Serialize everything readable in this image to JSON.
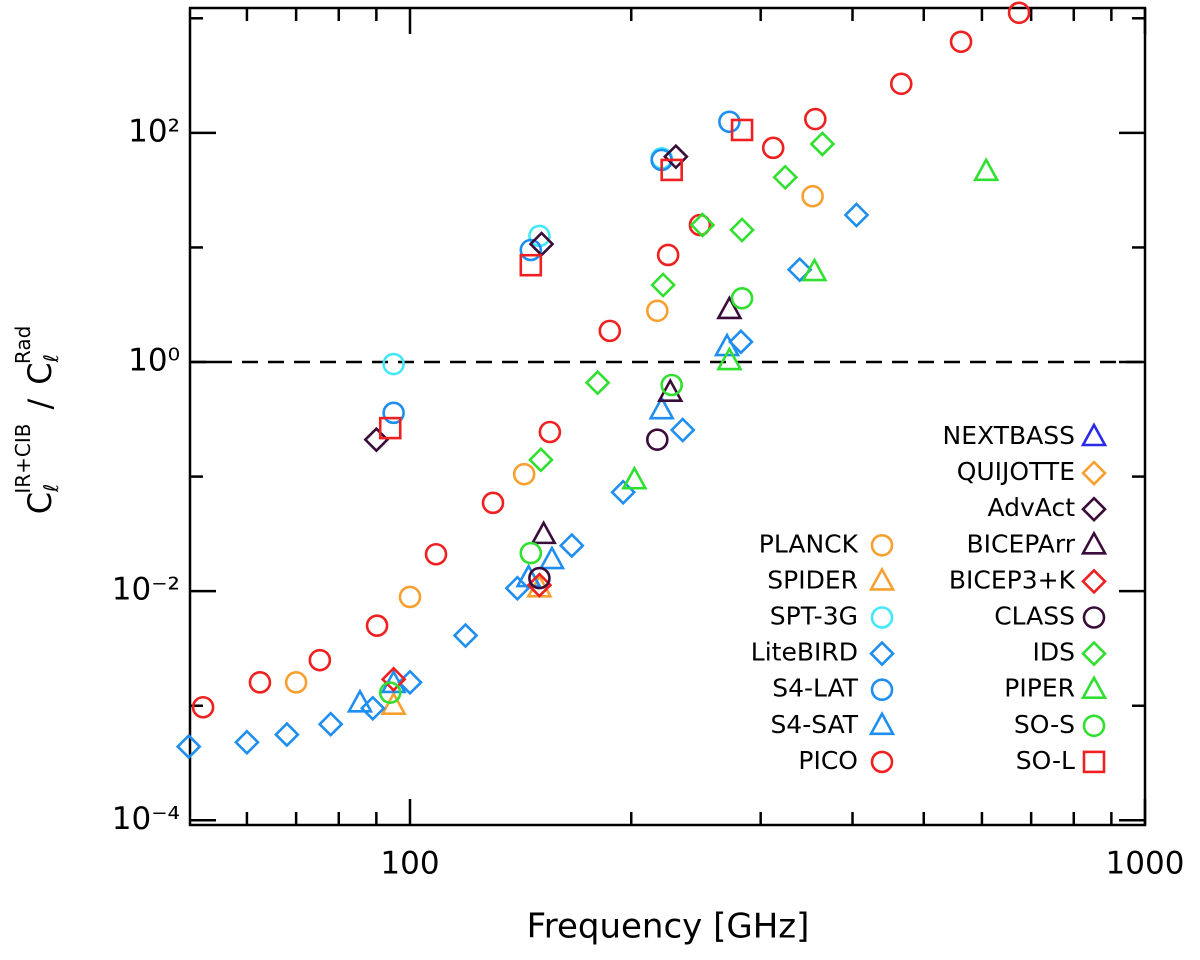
{
  "chart_data": {
    "type": "scatter",
    "log_x": true,
    "log_y": true,
    "xlabel": "Frequency [GHz]",
    "ylabel": {
      "numerator": {
        "base": "C",
        "sub": "ℓ",
        "sup": "IR+CIB"
      },
      "separator": "/",
      "denominator": {
        "base": "C",
        "sub": "ℓ",
        "sup": "Rad"
      }
    },
    "xlim": [
      50.2,
      1000
    ],
    "ylim": [
      9.1e-05,
      1230
    ],
    "xticks": [
      100,
      1000
    ],
    "xticks_minor": [
      60,
      70,
      80,
      90,
      200,
      300,
      400,
      500,
      600,
      700,
      800,
      900
    ],
    "yticks": [
      {
        "value": 0.0001,
        "label": "10⁻⁴"
      },
      {
        "value": 0.01,
        "label": "10⁻²"
      },
      {
        "value": 1,
        "label": "10⁰"
      },
      {
        "value": 100,
        "label": "10²"
      }
    ],
    "yticks_minor": [
      0.001,
      0.1,
      10,
      1000
    ],
    "reference_line": 1,
    "series": [
      {
        "name": "PLANCK",
        "color": "#f7a030",
        "marker": "circle",
        "x": [
          70,
          100,
          143,
          217,
          353
        ],
        "values": [
          0.0016,
          0.0089,
          0.105,
          2.8,
          28
        ]
      },
      {
        "name": "SPIDER",
        "color": "#f7a030",
        "marker": "triangle",
        "x": [
          95,
          150
        ],
        "values": [
          0.001,
          0.0106
        ]
      },
      {
        "name": "SPT-3G",
        "color": "#40e8f8",
        "marker": "circle",
        "x": [
          95,
          150,
          220
        ],
        "values": [
          0.96,
          12.6,
          60
        ]
      },
      {
        "name": "LiteBIRD",
        "color": "#1e8ef0",
        "marker": "diamond",
        "x": [
          50,
          60,
          68,
          78,
          89,
          100,
          119,
          140,
          166,
          195,
          235,
          282,
          339,
          405
        ],
        "values": [
          0.00044,
          0.00048,
          0.00056,
          0.00069,
          0.00095,
          0.0016,
          0.0041,
          0.0106,
          0.025,
          0.073,
          0.255,
          1.5,
          6.4,
          19.2
        ]
      },
      {
        "name": "S4-LAT",
        "color": "#1e8ef0",
        "marker": "circle",
        "x": [
          95,
          146,
          220,
          272
        ],
        "values": [
          0.36,
          9.5,
          58,
          125
        ]
      },
      {
        "name": "S4-SAT",
        "color": "#1e8ef0",
        "marker": "triangle",
        "x": [
          85.5,
          95,
          145,
          156,
          220,
          270
        ],
        "values": [
          0.00105,
          0.00155,
          0.013,
          0.0187,
          0.38,
          1.35
        ]
      },
      {
        "name": "PICO",
        "color": "#f02020",
        "marker": "circle",
        "x": [
          52.3,
          62.5,
          75.4,
          90.2,
          108.5,
          129.7,
          155,
          187,
          224.5,
          248,
          312,
          356,
          466,
          562,
          674
        ],
        "values": [
          0.00097,
          0.0016,
          0.0025,
          0.005,
          0.021,
          0.059,
          0.245,
          1.87,
          8.6,
          15.7,
          74,
          132,
          268,
          624,
          1117
        ]
      },
      {
        "name": "NEXTBASS",
        "color": "#2a2ae8",
        "marker": "triangle",
        "x": [],
        "values": []
      },
      {
        "name": "QUIJOTTE",
        "color": "#f7a030",
        "marker": "diamond",
        "x": [],
        "values": []
      },
      {
        "name": "AdvAct",
        "color": "#3a0c3a",
        "marker": "diamond",
        "x": [
          90,
          151,
          230
        ],
        "values": [
          0.21,
          10.7,
          62
        ]
      },
      {
        "name": "BICEPArr",
        "color": "#3a0c3a",
        "marker": "triangle",
        "x": [
          152,
          226,
          272
        ],
        "values": [
          0.031,
          0.54,
          2.85
        ]
      },
      {
        "name": "BICEP3+K",
        "color": "#f02020",
        "marker": "diamond",
        "x": [
          95,
          150
        ],
        "values": [
          0.0017,
          0.0113
        ]
      },
      {
        "name": "CLASS",
        "color": "#3a0c3a",
        "marker": "circle",
        "x": [
          150,
          217
        ],
        "values": [
          0.013,
          0.21
        ]
      },
      {
        "name": "IDS",
        "color": "#30e030",
        "marker": "diamond",
        "x": [
          150.7,
          180,
          221,
          250,
          283,
          324,
          364
        ],
        "values": [
          0.14,
          0.66,
          4.7,
          15.7,
          14.2,
          41,
          80
        ]
      },
      {
        "name": "PIPER",
        "color": "#30e030",
        "marker": "triangle",
        "x": [
          202,
          272,
          355,
          608
        ],
        "values": [
          0.093,
          1.02,
          6.1,
          45.7
        ]
      },
      {
        "name": "SO-S",
        "color": "#30e030",
        "marker": "circle",
        "x": [
          94,
          146,
          227,
          283
        ],
        "values": [
          0.0013,
          0.0215,
          0.63,
          3.6
        ]
      },
      {
        "name": "SO-L",
        "color": "#f02020",
        "marker": "square",
        "x": [
          94,
          146,
          227,
          283
        ],
        "values": [
          0.265,
          7.0,
          47.5,
          106
        ]
      }
    ]
  }
}
